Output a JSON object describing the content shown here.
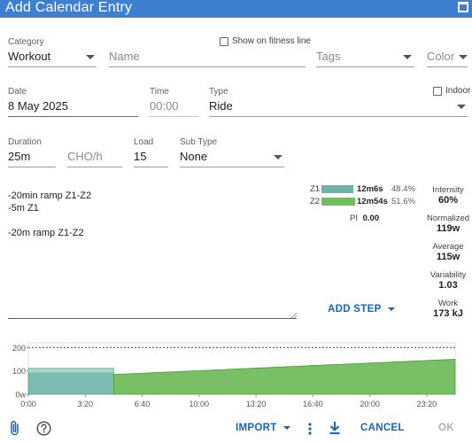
{
  "window": {
    "title": "Add Calendar Entry"
  },
  "category": {
    "label": "Category",
    "value": "Workout"
  },
  "name": {
    "placeholder": "Name"
  },
  "fitness_line": {
    "label": "Show on fitness line",
    "checked": false
  },
  "tags": {
    "placeholder": "Tags"
  },
  "color": {
    "placeholder": "Color"
  },
  "date": {
    "label": "Date",
    "value": "8 May 2025"
  },
  "time": {
    "label": "Time",
    "placeholder": "00:00"
  },
  "type": {
    "label": "Type",
    "value": "Ride"
  },
  "indoor": {
    "label": "Indoor",
    "checked": false
  },
  "duration": {
    "label": "Duration",
    "value": "25m"
  },
  "cho": {
    "placeholder": "CHO/h"
  },
  "load": {
    "label": "Load",
    "value": "15"
  },
  "subtype": {
    "label": "Sub Type",
    "value": "None"
  },
  "description": {
    "text": "-20min ramp Z1-Z2\n-5m Z1\n\n-20m ramp Z1-Z2"
  },
  "zones": [
    {
      "zone": "Z1",
      "time": "12m6s",
      "percent": "48.4%",
      "color": "#6db3a7",
      "fraction": 0.484
    },
    {
      "zone": "Z2",
      "time": "12m54s",
      "percent": "51.6%",
      "color": "#6fbf5a",
      "fraction": 0.516
    }
  ],
  "pi": {
    "label": "PI",
    "value": "0.00"
  },
  "stats": {
    "intensity": {
      "label": "Intensity",
      "value": "60%"
    },
    "normalized": {
      "label": "Normalized",
      "value": "119w"
    },
    "average": {
      "label": "Average",
      "value": "115w"
    },
    "variability": {
      "label": "Variability",
      "value": "1.03"
    },
    "work": {
      "label": "Work",
      "value": "173 kJ"
    }
  },
  "add_step": {
    "label": "ADD STEP"
  },
  "chart_data": {
    "type": "area",
    "y_ticks": [
      "200",
      "100",
      "0w"
    ],
    "x_ticks": [
      "0:00",
      "3:20",
      "6:40",
      "10:00",
      "13:20",
      "16:40",
      "20:00",
      "23:20"
    ],
    "ylim": [
      0,
      220
    ],
    "xlim_seconds": [
      0,
      1500
    ],
    "reference_line": 200,
    "series": [
      {
        "zone": "Z1",
        "color": "#6db3a7",
        "points": [
          [
            0,
            112
          ],
          [
            300,
            112
          ]
        ]
      },
      {
        "zone": "Z2",
        "color": "#6fbf5a",
        "points": [
          [
            300,
            85
          ],
          [
            1500,
            150
          ]
        ]
      }
    ]
  },
  "toolbar": {
    "import_label": "IMPORT",
    "cancel_label": "CANCEL",
    "ok_label": "OK"
  },
  "colors": {
    "accent": "#1565c0",
    "titlebar": "#3d7fd1"
  }
}
